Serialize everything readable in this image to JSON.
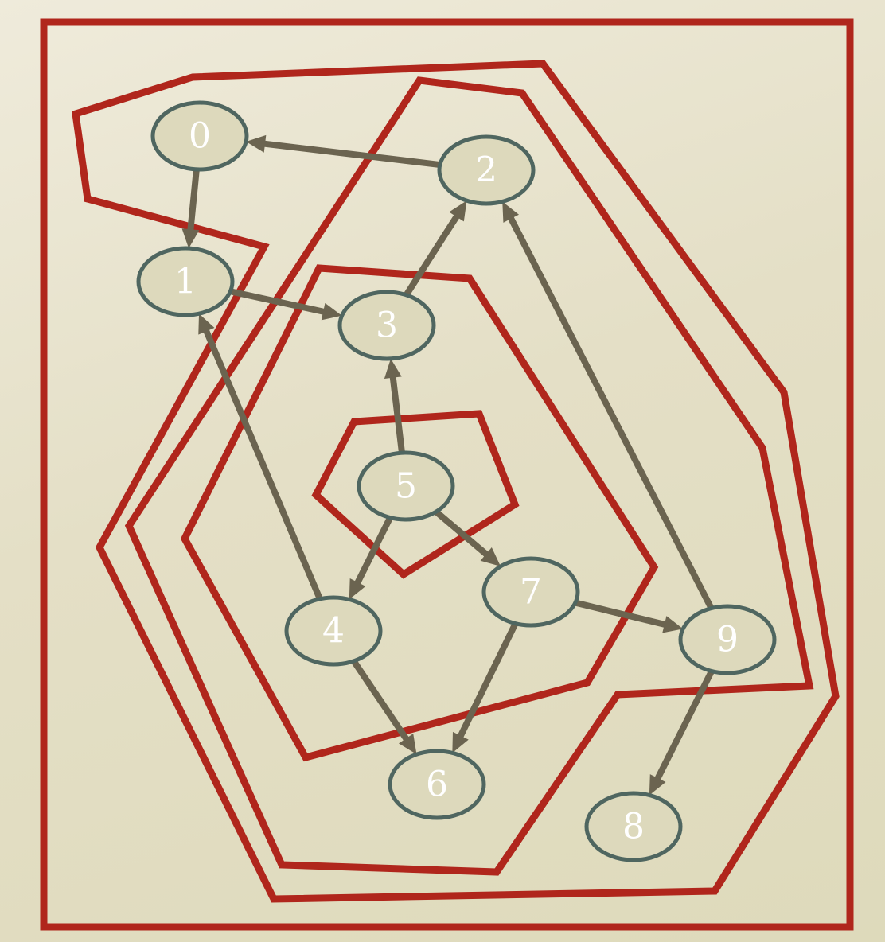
{
  "colors": {
    "hull": "#b0261c",
    "edge": "#6b6450",
    "node_fill": "#ddd9bc",
    "node_stroke": "#4f6660",
    "node_text": "#ffffff"
  },
  "nodes": [
    {
      "id": "0",
      "label": "0"
    },
    {
      "id": "1",
      "label": "1"
    },
    {
      "id": "2",
      "label": "2"
    },
    {
      "id": "3",
      "label": "3"
    },
    {
      "id": "4",
      "label": "4"
    },
    {
      "id": "5",
      "label": "5"
    },
    {
      "id": "6",
      "label": "6"
    },
    {
      "id": "7",
      "label": "7"
    },
    {
      "id": "8",
      "label": "8"
    },
    {
      "id": "9",
      "label": "9"
    }
  ],
  "edges": [
    {
      "from": "2",
      "to": "0"
    },
    {
      "from": "0",
      "to": "1"
    },
    {
      "from": "1",
      "to": "3"
    },
    {
      "from": "3",
      "to": "2"
    },
    {
      "from": "5",
      "to": "3"
    },
    {
      "from": "4",
      "to": "1"
    },
    {
      "from": "5",
      "to": "4"
    },
    {
      "from": "5",
      "to": "7"
    },
    {
      "from": "7",
      "to": "9"
    },
    {
      "from": "7",
      "to": "6"
    },
    {
      "from": "4",
      "to": "6"
    },
    {
      "from": "9",
      "to": "2"
    },
    {
      "from": "9",
      "to": "8"
    }
  ],
  "nested_groups": [
    {
      "members": [
        "0",
        "1",
        "2",
        "3",
        "4",
        "5",
        "6",
        "7",
        "8",
        "9"
      ]
    },
    {
      "members": [
        "0",
        "1",
        "2",
        "3",
        "4",
        "5",
        "6",
        "7",
        "9"
      ]
    },
    {
      "members": [
        "2",
        "3",
        "4",
        "5",
        "6",
        "7",
        "9"
      ]
    },
    {
      "members": [
        "3",
        "4",
        "5",
        "6",
        "7"
      ]
    },
    {
      "members": [
        "5"
      ]
    }
  ]
}
